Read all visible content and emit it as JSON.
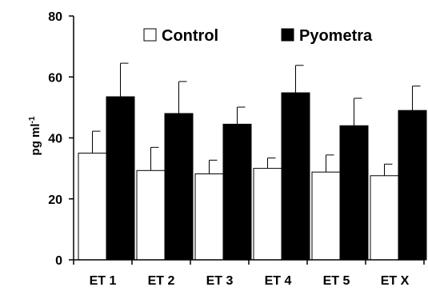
{
  "chart_data": {
    "type": "bar",
    "categories": [
      "ET 1",
      "ET 2",
      "ET 3",
      "ET 4",
      "ET 5",
      "ET X"
    ],
    "series": [
      {
        "name": "Control",
        "color": "#ffffff",
        "values": [
          35.0,
          29.3,
          28.2,
          30.0,
          28.8,
          27.6
        ],
        "error": [
          7.2,
          7.6,
          4.5,
          3.4,
          5.6,
          3.8
        ]
      },
      {
        "name": "Pyometra",
        "color": "#000000",
        "values": [
          53.5,
          48.0,
          44.5,
          54.8,
          44.0,
          49.0
        ],
        "error": [
          11.0,
          10.5,
          5.6,
          9.0,
          9.0,
          8.0
        ]
      }
    ],
    "ylabel": "pg ml",
    "ylabel_sup": "-1",
    "ylim": [
      0,
      80
    ],
    "yticks": [
      0,
      20,
      40,
      60,
      80
    ],
    "legend_position": "top"
  }
}
